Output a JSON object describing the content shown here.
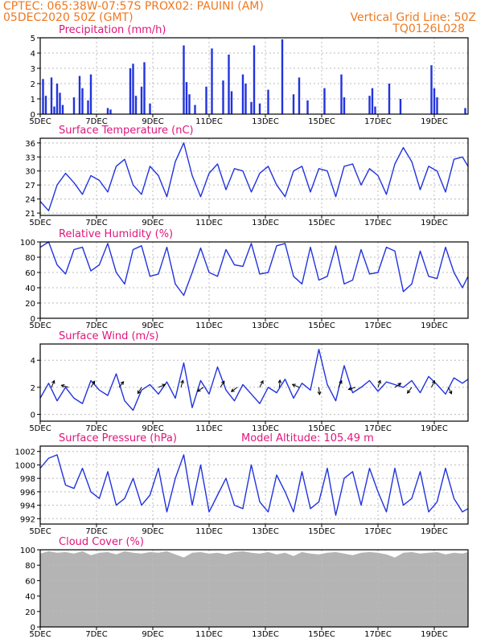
{
  "header": {
    "line1": "CPTEC:    065:38W-07:57S    PROX02: PAUINI (AM)",
    "line2_left": "05DEC2020 50Z (GMT)",
    "line2_right": "Vertical Grid Line: 50Z",
    "line3_right": "TQ0126L028"
  },
  "colors": {
    "header": "#f07820",
    "title": "#e0157a",
    "series": "#2233dd",
    "cloud": "#b4b4b4",
    "grid": "#bbbbbb"
  },
  "x_axis": {
    "tick_labels": [
      "5DEC",
      "7DEC",
      "9DEC",
      "11DEC",
      "13DEC",
      "15DEC",
      "17DEC",
      "19DEC"
    ],
    "tick_days": [
      0,
      2,
      4,
      6,
      8,
      10,
      12,
      14
    ],
    "range_days": [
      0,
      15.2
    ]
  },
  "chart_data": [
    {
      "type": "bar",
      "title": "Precipitation (mm/h)",
      "ylim": [
        0,
        5
      ],
      "yticks": [
        0,
        1,
        2,
        3,
        4,
        5
      ],
      "grid": true,
      "x_days": [
        0.1,
        0.2,
        0.4,
        0.5,
        0.6,
        0.7,
        0.8,
        1.2,
        1.4,
        1.5,
        1.7,
        1.8,
        2.4,
        2.5,
        3.2,
        3.3,
        3.4,
        3.6,
        3.7,
        3.9,
        5.1,
        5.2,
        5.3,
        5.5,
        5.9,
        6.1,
        6.5,
        6.7,
        6.8,
        7.2,
        7.3,
        7.5,
        7.6,
        7.8,
        8.1,
        8.6,
        9.0,
        9.2,
        9.5,
        10.1,
        10.7,
        10.8,
        11.7,
        11.8,
        11.9,
        12.4,
        12.8,
        13.9,
        14.0,
        14.1,
        15.1
      ],
      "values": [
        2.3,
        1.2,
        2.4,
        0.5,
        2.0,
        1.4,
        0.6,
        1.1,
        2.5,
        1.7,
        0.9,
        2.6,
        0.4,
        0.3,
        3.0,
        3.3,
        1.2,
        1.8,
        3.4,
        0.7,
        4.5,
        2.1,
        1.3,
        0.6,
        1.8,
        4.3,
        2.2,
        3.9,
        1.5,
        2.6,
        2.0,
        0.8,
        4.5,
        0.7,
        1.6,
        4.9,
        1.3,
        2.4,
        0.9,
        1.7,
        2.6,
        1.1,
        1.2,
        1.7,
        0.5,
        2.0,
        1.0,
        3.2,
        1.7,
        1.1,
        0.4
      ]
    },
    {
      "type": "line",
      "title": "Surface Temperature (nC)",
      "ylim": [
        20.5,
        37
      ],
      "yticks": [
        21,
        24,
        27,
        30,
        33,
        36
      ],
      "grid": true,
      "x_days": [
        0,
        0.3,
        0.6,
        0.9,
        1.2,
        1.5,
        1.8,
        2.1,
        2.4,
        2.7,
        3.0,
        3.3,
        3.6,
        3.9,
        4.2,
        4.5,
        4.8,
        5.1,
        5.4,
        5.7,
        6.0,
        6.3,
        6.6,
        6.9,
        7.2,
        7.5,
        7.8,
        8.1,
        8.4,
        8.7,
        9.0,
        9.3,
        9.6,
        9.9,
        10.2,
        10.5,
        10.8,
        11.1,
        11.4,
        11.7,
        12.0,
        12.3,
        12.6,
        12.9,
        13.2,
        13.5,
        13.8,
        14.1,
        14.4,
        14.7,
        15.0,
        15.2
      ],
      "values": [
        23.5,
        21.5,
        27.0,
        29.5,
        27.5,
        25.0,
        29.0,
        28.0,
        25.5,
        31.0,
        32.5,
        27.0,
        25.0,
        31.0,
        29.0,
        24.5,
        32.0,
        36.0,
        29.0,
        24.5,
        29.5,
        31.5,
        26.0,
        30.5,
        30.0,
        25.5,
        29.5,
        31.0,
        27.0,
        24.5,
        30.0,
        31.0,
        25.5,
        30.5,
        30.0,
        24.5,
        31.0,
        31.5,
        27.0,
        30.5,
        29.0,
        25.0,
        31.5,
        35.0,
        32.0,
        26.0,
        31.0,
        30.0,
        25.5,
        32.5,
        33.0,
        31.0
      ]
    },
    {
      "type": "line",
      "title": "Relative Humidity (%)",
      "ylim": [
        0,
        100
      ],
      "yticks": [
        0,
        20,
        40,
        60,
        80,
        100
      ],
      "grid": true,
      "x_days": [
        0,
        0.3,
        0.6,
        0.9,
        1.2,
        1.5,
        1.8,
        2.1,
        2.4,
        2.7,
        3.0,
        3.3,
        3.6,
        3.9,
        4.2,
        4.5,
        4.8,
        5.1,
        5.4,
        5.7,
        6.0,
        6.3,
        6.6,
        6.9,
        7.2,
        7.5,
        7.8,
        8.1,
        8.4,
        8.7,
        9.0,
        9.3,
        9.6,
        9.9,
        10.2,
        10.5,
        10.8,
        11.1,
        11.4,
        11.7,
        12.0,
        12.3,
        12.6,
        12.9,
        13.2,
        13.5,
        13.8,
        14.1,
        14.4,
        14.7,
        15.0,
        15.2
      ],
      "values": [
        93,
        100,
        70,
        58,
        90,
        93,
        62,
        70,
        98,
        60,
        45,
        90,
        95,
        55,
        58,
        93,
        45,
        30,
        60,
        92,
        60,
        55,
        90,
        70,
        68,
        98,
        58,
        60,
        95,
        98,
        55,
        45,
        93,
        50,
        55,
        95,
        45,
        50,
        90,
        58,
        60,
        93,
        88,
        35,
        45,
        88,
        55,
        52,
        93,
        60,
        40,
        55
      ]
    },
    {
      "type": "line",
      "title": "Surface Wind (m/s)",
      "ylim": [
        -0.5,
        5.2
      ],
      "yticks": [
        0,
        2,
        4
      ],
      "grid": true,
      "x_days": [
        0,
        0.3,
        0.6,
        0.9,
        1.2,
        1.5,
        1.8,
        2.1,
        2.4,
        2.7,
        3.0,
        3.3,
        3.6,
        3.9,
        4.2,
        4.5,
        4.8,
        5.1,
        5.4,
        5.7,
        6.0,
        6.3,
        6.6,
        6.9,
        7.2,
        7.5,
        7.8,
        8.1,
        8.4,
        8.7,
        9.0,
        9.3,
        9.6,
        9.9,
        10.2,
        10.5,
        10.8,
        11.1,
        11.4,
        11.7,
        12.0,
        12.3,
        12.6,
        12.9,
        13.2,
        13.5,
        13.8,
        14.1,
        14.4,
        14.7,
        15.0,
        15.2
      ],
      "values": [
        1.2,
        2.3,
        1.0,
        2.0,
        1.2,
        0.8,
        2.5,
        1.8,
        1.4,
        3.0,
        1.0,
        0.3,
        1.8,
        2.2,
        1.5,
        2.4,
        1.2,
        3.8,
        0.5,
        2.5,
        1.5,
        3.5,
        1.8,
        1.0,
        2.2,
        1.5,
        0.8,
        2.0,
        1.6,
        2.6,
        1.2,
        2.3,
        1.8,
        4.8,
        2.2,
        1.0,
        3.6,
        1.6,
        2.0,
        2.5,
        1.7,
        2.4,
        2.2,
        2.0,
        2.5,
        1.6,
        2.8,
        2.2,
        1.5,
        2.7,
        2.3,
        2.6
      ],
      "arrows": {
        "x_days": [
          0.4,
          1.0,
          1.8,
          2.8,
          3.6,
          4.2,
          5.0,
          5.8,
          6.4,
          7.0,
          7.8,
          8.5,
          9.2,
          9.9,
          10.6,
          11.2,
          12.0,
          12.6,
          13.2,
          13.9,
          14.5
        ],
        "u": [
          0.5,
          -1.0,
          0.6,
          0.8,
          -0.6,
          1.2,
          0.4,
          -0.9,
          0.7,
          -1.1,
          0.5,
          0.1,
          -0.7,
          0.2,
          0.6,
          -1.0,
          0.4,
          0.9,
          -0.6,
          0.5,
          0.3
        ],
        "v": [
          1.2,
          0.3,
          1.0,
          1.0,
          -1.0,
          0.5,
          1.4,
          -0.6,
          1.1,
          -0.8,
          1.0,
          1.5,
          0.3,
          -2.0,
          1.3,
          -0.3,
          1.2,
          0.6,
          -0.8,
          1.0,
          -0.6
        ]
      }
    },
    {
      "type": "line",
      "title": "Surface Pressure (hPa)",
      "subtitle": "Model Altitude: 105.49 m",
      "ylim": [
        991.2,
        1002.8
      ],
      "yticks": [
        992,
        994,
        996,
        998,
        1000,
        1002
      ],
      "grid": true,
      "x_days": [
        0,
        0.3,
        0.6,
        0.9,
        1.2,
        1.5,
        1.8,
        2.1,
        2.4,
        2.7,
        3.0,
        3.3,
        3.6,
        3.9,
        4.2,
        4.5,
        4.8,
        5.1,
        5.4,
        5.7,
        6.0,
        6.3,
        6.6,
        6.9,
        7.2,
        7.5,
        7.8,
        8.1,
        8.4,
        8.7,
        9.0,
        9.3,
        9.6,
        9.9,
        10.2,
        10.5,
        10.8,
        11.1,
        11.4,
        11.7,
        12.0,
        12.3,
        12.6,
        12.9,
        13.2,
        13.5,
        13.8,
        14.1,
        14.4,
        14.7,
        15.0,
        15.2
      ],
      "values": [
        999.5,
        1001.0,
        1001.5,
        997.0,
        996.5,
        999.5,
        996.0,
        995.0,
        999.0,
        994.0,
        995.0,
        998.0,
        994.0,
        995.5,
        999.5,
        993.0,
        998.0,
        1001.5,
        994.0,
        1000.0,
        993.0,
        995.5,
        998.0,
        994.0,
        993.5,
        1000.0,
        994.5,
        993.0,
        998.5,
        996.0,
        993.0,
        999.0,
        993.5,
        994.5,
        999.5,
        992.5,
        998.0,
        999.0,
        994.0,
        999.5,
        996.0,
        993.0,
        999.5,
        994.0,
        995.0,
        999.0,
        993.0,
        994.5,
        999.5,
        995.0,
        993.0,
        993.5
      ]
    },
    {
      "type": "area",
      "title": "Cloud Cover (%)",
      "ylim": [
        0,
        100
      ],
      "yticks": [
        0,
        20,
        40,
        60,
        80,
        100
      ],
      "grid": true,
      "x_days": [
        0,
        0.3,
        0.6,
        0.9,
        1.2,
        1.5,
        1.8,
        2.1,
        2.4,
        2.7,
        3.0,
        3.3,
        3.6,
        3.9,
        4.2,
        4.5,
        4.8,
        5.1,
        5.4,
        5.7,
        6.0,
        6.3,
        6.6,
        6.9,
        7.2,
        7.5,
        7.8,
        8.1,
        8.4,
        8.7,
        9.0,
        9.3,
        9.6,
        9.9,
        10.2,
        10.5,
        10.8,
        11.1,
        11.4,
        11.7,
        12.0,
        12.3,
        12.6,
        12.9,
        13.2,
        13.5,
        13.8,
        14.1,
        14.4,
        14.7,
        15.0,
        15.2
      ],
      "values": [
        95,
        98,
        96,
        97,
        95,
        98,
        93,
        96,
        97,
        94,
        98,
        96,
        95,
        97,
        96,
        98,
        94,
        90,
        96,
        97,
        95,
        96,
        94,
        97,
        98,
        96,
        95,
        97,
        94,
        96,
        92,
        97,
        95,
        94,
        96,
        97,
        95,
        93,
        96,
        97,
        96,
        94,
        90,
        96,
        97,
        95,
        96,
        97,
        94,
        96,
        95,
        97
      ]
    }
  ]
}
